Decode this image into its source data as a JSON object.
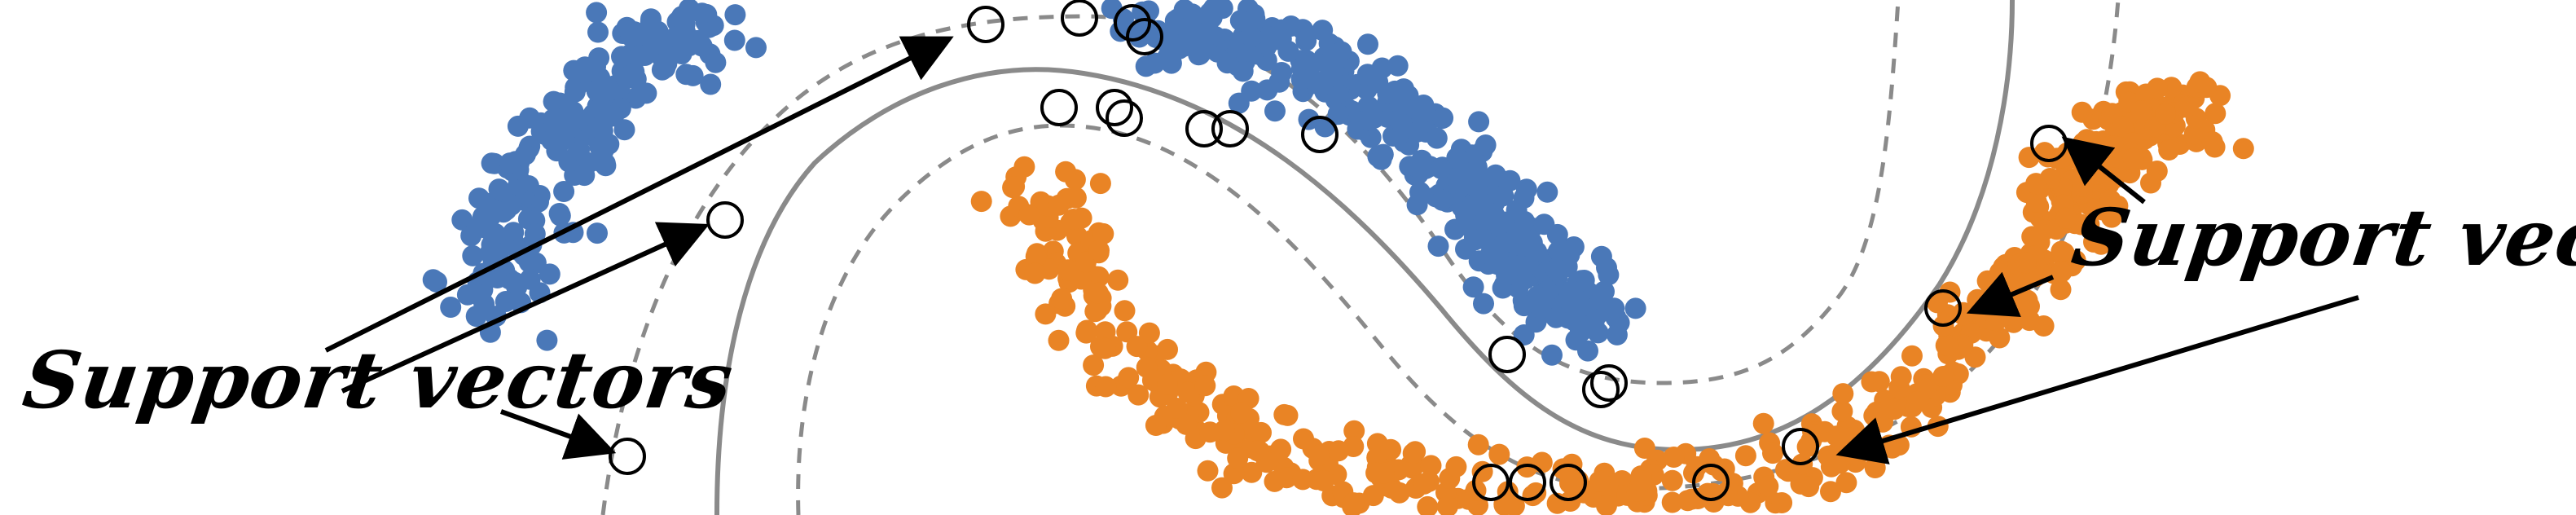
{
  "labels": {
    "left": "Support vectors",
    "right": "Support vectors"
  },
  "colors": {
    "class_a": "#4a78b8",
    "class_b": "#e98425",
    "boundary": "#8a8a8a",
    "support_ring": "#000000",
    "arrow": "#000000"
  }
}
